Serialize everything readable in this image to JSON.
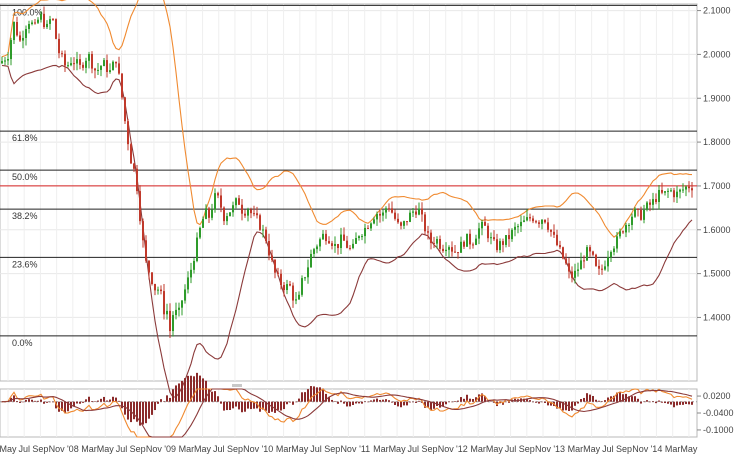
{
  "chart_data": {
    "type": "candlestick",
    "price_axis": {
      "ticks": [
        "2.1000",
        "2.0000",
        "1.9000",
        "1.8000",
        "1.7000",
        "1.6000",
        "1.5000",
        "1.4000"
      ],
      "tick_values": [
        2.1,
        2.0,
        1.9,
        1.8,
        1.7,
        1.6,
        1.5,
        1.4
      ],
      "ylim": [
        1.255,
        2.115
      ]
    },
    "time_axis": {
      "labels": [
        "May",
        "Jul",
        "Sep",
        "Nov",
        "'08",
        "Mar",
        "May",
        "Jul",
        "Sep",
        "Nov",
        "'09",
        "Mar",
        "May",
        "Jul",
        "Sep",
        "Nov",
        "'10",
        "Mar",
        "May",
        "Jul",
        "Sep",
        "Nov",
        "'11",
        "Mar",
        "May",
        "Jul",
        "Sep",
        "Nov",
        "'12",
        "Mar",
        "May",
        "Jul",
        "Sep",
        "Nov",
        "'13",
        "Mar",
        "May",
        "Jul",
        "Sep",
        "Nov",
        "'14",
        "Mar",
        "May"
      ],
      "start": "2007-05",
      "end": "2014-07"
    },
    "fibonacci": [
      {
        "label": "100.0%",
        "price": 2.112
      },
      {
        "label": "61.8%",
        "price": 1.825
      },
      {
        "label": "50.0%",
        "price": 1.736
      },
      {
        "label": "38.2%",
        "price": 1.647
      },
      {
        "label": "23.6%",
        "price": 1.537
      },
      {
        "label": "0.0%",
        "price": 1.358
      }
    ],
    "current_price_line": 1.7,
    "price_path": [
      [
        0,
        1.98
      ],
      [
        8,
        2.0
      ],
      [
        14,
        2.07
      ],
      [
        20,
        2.03
      ],
      [
        28,
        2.08
      ],
      [
        35,
        2.06
      ],
      [
        40,
        2.09
      ],
      [
        47,
        2.06
      ],
      [
        52,
        2.09
      ],
      [
        58,
        2.01
      ],
      [
        66,
        1.97
      ],
      [
        72,
        1.99
      ],
      [
        80,
        1.97
      ],
      [
        88,
        2.0
      ],
      [
        96,
        1.96
      ],
      [
        103,
        1.98
      ],
      [
        110,
        1.96
      ],
      [
        116,
        1.99
      ],
      [
        121,
        1.92
      ],
      [
        126,
        1.83
      ],
      [
        131,
        1.76
      ],
      [
        136,
        1.72
      ],
      [
        141,
        1.61
      ],
      [
        145,
        1.53
      ],
      [
        150,
        1.5
      ],
      [
        156,
        1.46
      ],
      [
        160,
        1.47
      ],
      [
        163,
        1.41
      ],
      [
        166,
        1.43
      ],
      [
        170,
        1.37
      ],
      [
        174,
        1.42
      ],
      [
        178,
        1.4
      ],
      [
        182,
        1.44
      ],
      [
        186,
        1.47
      ],
      [
        190,
        1.5
      ],
      [
        195,
        1.55
      ],
      [
        200,
        1.6
      ],
      [
        205,
        1.64
      ],
      [
        209,
        1.63
      ],
      [
        213,
        1.66
      ],
      [
        216,
        1.68
      ],
      [
        220,
        1.66
      ],
      [
        224,
        1.63
      ],
      [
        228,
        1.64
      ],
      [
        233,
        1.65
      ],
      [
        238,
        1.67
      ],
      [
        243,
        1.64
      ],
      [
        248,
        1.65
      ],
      [
        253,
        1.63
      ],
      [
        258,
        1.62
      ],
      [
        262,
        1.6
      ],
      [
        266,
        1.58
      ],
      [
        270,
        1.54
      ],
      [
        275,
        1.5
      ],
      [
        280,
        1.48
      ],
      [
        285,
        1.47
      ],
      [
        290,
        1.47
      ],
      [
        294,
        1.44
      ],
      [
        298,
        1.43
      ],
      [
        302,
        1.48
      ],
      [
        307,
        1.51
      ],
      [
        312,
        1.55
      ],
      [
        318,
        1.57
      ],
      [
        324,
        1.59
      ],
      [
        330,
        1.58
      ],
      [
        336,
        1.56
      ],
      [
        342,
        1.58
      ],
      [
        348,
        1.56
      ],
      [
        352,
        1.55
      ],
      [
        358,
        1.59
      ],
      [
        364,
        1.6
      ],
      [
        370,
        1.62
      ],
      [
        376,
        1.64
      ],
      [
        382,
        1.63
      ],
      [
        388,
        1.66
      ],
      [
        394,
        1.63
      ],
      [
        400,
        1.6
      ],
      [
        406,
        1.62
      ],
      [
        412,
        1.64
      ],
      [
        418,
        1.65
      ],
      [
        424,
        1.61
      ],
      [
        430,
        1.57
      ],
      [
        436,
        1.58
      ],
      [
        442,
        1.56
      ],
      [
        448,
        1.57
      ],
      [
        454,
        1.55
      ],
      [
        460,
        1.56
      ],
      [
        466,
        1.58
      ],
      [
        472,
        1.57
      ],
      [
        478,
        1.6
      ],
      [
        484,
        1.61
      ],
      [
        490,
        1.58
      ],
      [
        496,
        1.56
      ],
      [
        502,
        1.57
      ],
      [
        508,
        1.58
      ],
      [
        514,
        1.6
      ],
      [
        520,
        1.61
      ],
      [
        526,
        1.62
      ],
      [
        532,
        1.63
      ],
      [
        538,
        1.62
      ],
      [
        544,
        1.63
      ],
      [
        550,
        1.6
      ],
      [
        556,
        1.57
      ],
      [
        562,
        1.54
      ],
      [
        566,
        1.52
      ],
      [
        570,
        1.49
      ],
      [
        575,
        1.5
      ],
      [
        580,
        1.52
      ],
      [
        586,
        1.55
      ],
      [
        592,
        1.54
      ],
      [
        596,
        1.51
      ],
      [
        600,
        1.5
      ],
      [
        604,
        1.52
      ],
      [
        610,
        1.56
      ],
      [
        616,
        1.57
      ],
      [
        622,
        1.6
      ],
      [
        628,
        1.62
      ],
      [
        634,
        1.64
      ],
      [
        640,
        1.63
      ],
      [
        646,
        1.65
      ],
      [
        652,
        1.66
      ],
      [
        658,
        1.68
      ],
      [
        664,
        1.68
      ],
      [
        670,
        1.69
      ],
      [
        676,
        1.68
      ],
      [
        682,
        1.69
      ],
      [
        688,
        1.7
      ],
      [
        694,
        1.7
      ]
    ],
    "oscillator_axis": {
      "ticks": [
        "0.0200",
        "-0.0400",
        "-0.1000"
      ],
      "tick_values": [
        0.02,
        -0.04,
        -0.1
      ],
      "ylim": [
        -0.125,
        0.045
      ]
    }
  },
  "ui": {
    "colors": {
      "bull": "#2e9b2a",
      "bear": "#c0392b",
      "upper_band": "#f08a30",
      "lower_band": "#8b3a3a",
      "price_line": "#d62020",
      "hist": "#8b2a2a"
    }
  }
}
